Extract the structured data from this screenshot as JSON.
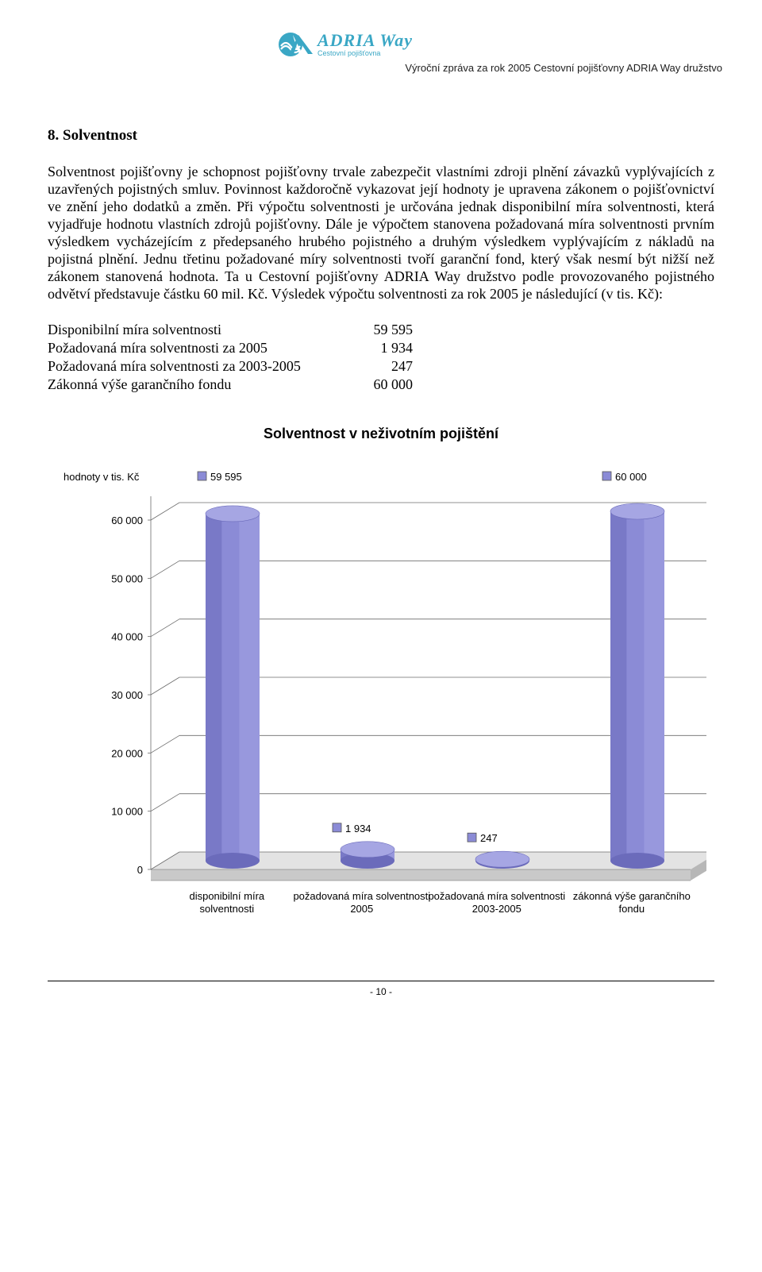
{
  "header": {
    "logo_main": "ADRIA Way",
    "logo_sub": "Cestovní pojišťovna",
    "report_line": "Výroční zpráva za rok 2005 Cestovní pojišťovny ADRIA Way družstvo",
    "logo_color": "#3aa7c5"
  },
  "section": {
    "title": "8.  Solventnost",
    "body": "Solventnost pojišťovny je schopnost pojišťovny trvale zabezpečit vlastními zdroji plnění závazků vyplývajících z uzavřených pojistných smluv. Povinnost každoročně vykazovat její hodnoty je upravena zákonem o pojišťovnictví ve znění jeho dodatků a změn. Při výpočtu solventnosti je určována jednak disponibilní míra solventnosti, která vyjadřuje hodnotu vlastních zdrojů pojišťovny. Dále je výpočtem stanovena požadovaná míra solventnosti prvním výsledkem vycházejícím z předepsaného hrubého pojistného a druhým výsledkem vyplývajícím z nákladů na pojistná plnění. Jednu třetinu požadované míry solventnosti tvoří garanční fond, který však nesmí být nižší než zákonem stanovená hodnota. Ta u Cestovní pojišťovny ADRIA Way družstvo  podle provozovaného pojistného odvětví představuje částku 60 mil. Kč. Výsledek výpočtu solventnosti za rok 2005 je následující (v tis. Kč):"
  },
  "metrics": [
    {
      "label": "Disponibilní míra solventnosti",
      "value": "59 595"
    },
    {
      "label": "Požadovaná míra solventnosti za 2005",
      "value": "1 934"
    },
    {
      "label": "Požadovaná míra solventnosti za 2003-2005",
      "value": "247"
    },
    {
      "label": "Zákonná výše garančního fondu",
      "value": "60 000"
    }
  ],
  "chart": {
    "title": "Solventnost v neživotním pojištění",
    "type": "3d-cylinder-bar",
    "y_axis_label": "hodnoty v tis. Kč",
    "ylim": [
      0,
      60000
    ],
    "ytick_step": 10000,
    "yticks": [
      "0",
      "10 000",
      "20 000",
      "30 000",
      "40 000",
      "50 000",
      "60 000"
    ],
    "categories": [
      "disponibilní míra solventnosti",
      "požadovaná míra solventnosti 2005",
      "požadovaná míra solventnosti 2003-2005",
      "zákonná výše garančního fondu"
    ],
    "values": [
      59595,
      1934,
      247,
      60000
    ],
    "value_labels": [
      "59 595",
      "1 934",
      "247",
      "60 000"
    ],
    "bar_color": "#8b8bd6",
    "bar_color_dark": "#6b6bbb",
    "bar_color_light": "#a6a6e3",
    "floor_color_front": "#c9c9c9",
    "floor_color_top": "#e3e3e3",
    "wall_color": "#ffffff",
    "gridline_color": "#6b6b6b",
    "text_color": "#000000",
    "axis_font_family": "Arial, Helvetica, sans-serif",
    "axis_font_size": 13,
    "title_font_size": 18,
    "legend_marker_border": "#555555",
    "aspect_w": 820,
    "aspect_h": 620
  },
  "footer": {
    "page_number": "- 10 -"
  }
}
